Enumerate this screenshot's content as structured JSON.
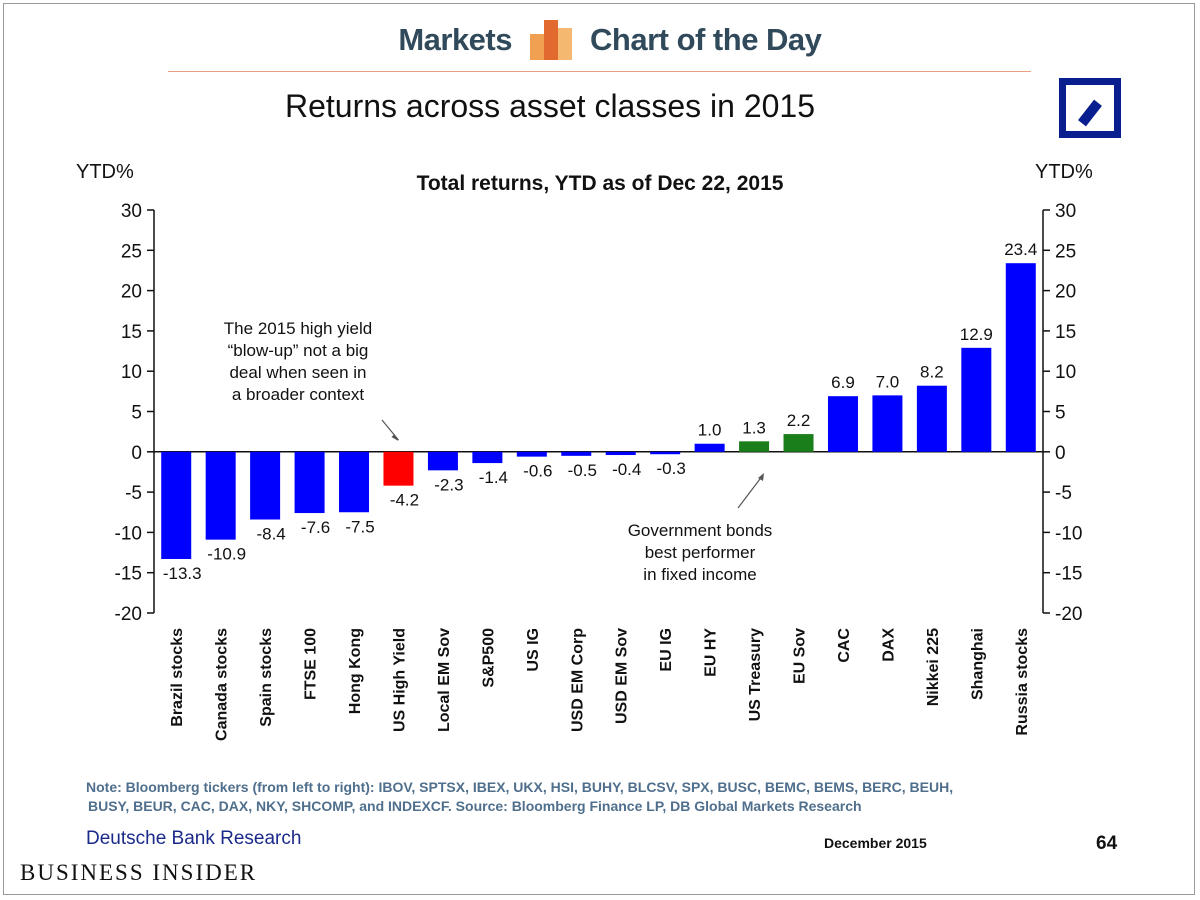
{
  "header": {
    "left": "Markets",
    "right": "Chart of the Day"
  },
  "title": "Returns across asset classes in 2015",
  "colors": {
    "blue": "#0000ff",
    "red": "#ff0000",
    "green": "#1a7f1a",
    "text": "#111111"
  },
  "chart_data": {
    "type": "bar",
    "title": "Total returns, YTD as of Dec 22, 2015",
    "ylabel": "YTD%",
    "ylim": [
      -20,
      30
    ],
    "yticks": [
      30,
      25,
      20,
      15,
      10,
      5,
      0,
      -5,
      -10,
      -15,
      -20
    ],
    "categories": [
      "Brazil stocks",
      "Canada stocks",
      "Spain stocks",
      "FTSE 100",
      "Hong Kong",
      "US High Yield",
      "Local EM Sov",
      "S&P500",
      "US IG",
      "USD EM Corp",
      "USD EM Sov",
      "EU IG",
      "EU HY",
      "US Treasury",
      "EU Sov",
      "CAC",
      "DAX",
      "Nikkei 225",
      "Shanghai",
      "Russia stocks"
    ],
    "values": [
      -13.3,
      -10.9,
      -8.4,
      -7.6,
      -7.5,
      -4.2,
      -2.3,
      -1.4,
      -0.6,
      -0.5,
      -0.4,
      -0.3,
      1.0,
      1.3,
      2.2,
      6.9,
      7.0,
      8.2,
      12.9,
      23.4
    ],
    "value_labels": [
      "-13.3",
      "-10.9",
      "-8.4",
      "-7.6",
      "-7.5",
      "-4.2",
      "-2.3",
      "-1.4",
      "-0.6",
      "-0.5",
      "-0.4",
      "-0.3",
      "1.0",
      "1.3",
      "2.2",
      "6.9",
      "7.0",
      "8.2",
      "12.9",
      "23.4"
    ],
    "bar_colors": [
      "blue",
      "blue",
      "blue",
      "blue",
      "blue",
      "red",
      "blue",
      "blue",
      "blue",
      "blue",
      "blue",
      "blue",
      "blue",
      "green",
      "green",
      "blue",
      "blue",
      "blue",
      "blue",
      "blue"
    ],
    "annotations": [
      {
        "lines": [
          "The 2015 high yield",
          "“blow-up” not a big",
          "deal when seen in",
          "a broader context"
        ],
        "target": "US High Yield"
      },
      {
        "lines": [
          "Government bonds",
          "best performer",
          "in fixed income"
        ],
        "target": "US Treasury"
      }
    ]
  },
  "note": {
    "line1": "Note: Bloomberg  tickers (from left to right): IBOV, SPTSX, IBEX, UKX, HSI, BUHY, BLCSV, SPX, BUSC, BEMC, BEMS, BERC, BEUH,",
    "line2": "BUSY, BEUR, CAC, DAX, NKY, SHCOMP, and INDEXCF. Source: Bloomberg Finance LP, DB Global Markets Research"
  },
  "footer": {
    "source": "Deutsche Bank Research",
    "date": "December 2015",
    "page": "64"
  },
  "brand": "BUSINESS INSIDER"
}
